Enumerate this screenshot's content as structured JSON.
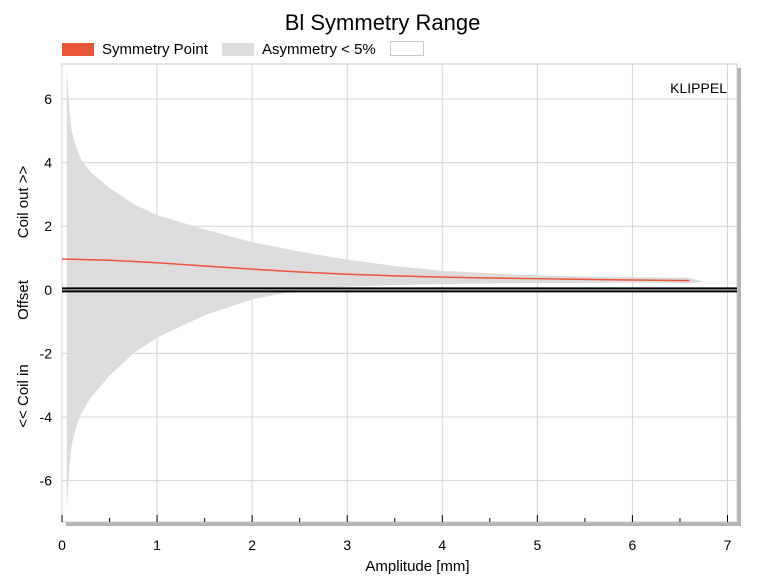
{
  "chart_data": {
    "type": "area",
    "title": "Bl Symmetry Range",
    "xlabel": "Amplitude [mm]",
    "ylabel_parts": [
      "<< Coil in",
      "Offset",
      "Coil out >>"
    ],
    "watermark": "KLIPPEL",
    "xlim": [
      0,
      7.1
    ],
    "ylim": [
      -7.3,
      7.1
    ],
    "x_ticks": [
      0,
      1,
      2,
      3,
      4,
      5,
      6,
      7
    ],
    "y_ticks": [
      -6,
      -4,
      -2,
      0,
      2,
      4,
      6
    ],
    "grid": true,
    "legend_position": "top-left",
    "legend": [
      "Symmetry Point",
      "Asymmetry < 5%"
    ],
    "colors": {
      "symmetry_point": "#e8573a",
      "asymmetry_band": "#dcdcdc",
      "zero_line": "#000000",
      "grid": "#d4d4d4"
    },
    "series": [
      {
        "name": "Symmetry Point",
        "type": "line",
        "x": [
          0,
          0.5,
          1,
          1.5,
          2,
          2.5,
          3,
          3.5,
          4,
          4.5,
          5,
          5.5,
          6,
          6.6
        ],
        "y": [
          0.97,
          0.93,
          0.85,
          0.75,
          0.65,
          0.56,
          0.49,
          0.44,
          0.4,
          0.37,
          0.35,
          0.33,
          0.31,
          0.29
        ]
      },
      {
        "name": "Asymmetry < 5%",
        "type": "band",
        "x": [
          0.05,
          0.08,
          0.1,
          0.15,
          0.2,
          0.3,
          0.5,
          0.75,
          1,
          1.5,
          2,
          2.5,
          3,
          3.5,
          4,
          4.5,
          5,
          5.5,
          6,
          6.6,
          6.75
        ],
        "upper": [
          6.95,
          5.6,
          5.0,
          4.5,
          4.1,
          3.7,
          3.2,
          2.7,
          2.35,
          1.9,
          1.5,
          1.2,
          0.95,
          0.75,
          0.6,
          0.52,
          0.46,
          0.42,
          0.4,
          0.38,
          0.25
        ],
        "lower": [
          -6.9,
          -5.5,
          -4.9,
          -4.3,
          -3.9,
          -3.4,
          -2.7,
          -2.0,
          -1.5,
          -0.8,
          -0.3,
          0.0,
          0.1,
          0.15,
          0.18,
          0.2,
          0.21,
          0.22,
          0.23,
          0.2,
          0.25
        ]
      }
    ]
  }
}
